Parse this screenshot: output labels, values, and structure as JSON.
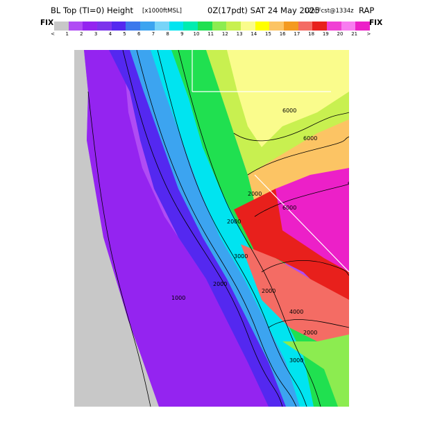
{
  "title": {
    "field": "BL Top (TI=0) Height",
    "units": "[x1000ftMSL]",
    "valid": "0Z(17pdt) SAT 24 May 2025",
    "forecast": "12hrFcst@1334z",
    "model": "RAP"
  },
  "colorbar": {
    "left_label": "FIX",
    "right_label": "FIX",
    "colors": [
      "#c8c8c8",
      "#b04cf4",
      "#9424f0",
      "#7c34ec",
      "#5428f0",
      "#3c78ec",
      "#3ca4f0",
      "#78d4f8",
      "#00e4f0",
      "#00ecb0",
      "#20e050",
      "#8cec50",
      "#c8f050",
      "#fafc8c",
      "#ffff00",
      "#fcc464",
      "#f49a20",
      "#f46c64",
      "#e8201c",
      "#f040d4",
      "#f87cf0",
      "#ec20c8"
    ],
    "ticks": [
      "<",
      "1",
      "2",
      "3",
      "4",
      "5",
      "6",
      "7",
      "8",
      "9",
      "10",
      "11",
      "12",
      "13",
      "14",
      "15",
      "16",
      "17",
      "18",
      "19",
      "20",
      "21",
      ">"
    ]
  },
  "map": {
    "contour_labels": [
      "6000",
      "6000",
      "6000",
      "2000",
      "2000",
      "3000",
      "2000",
      "1000",
      "2000",
      "4000",
      "2000",
      "3000"
    ]
  }
}
